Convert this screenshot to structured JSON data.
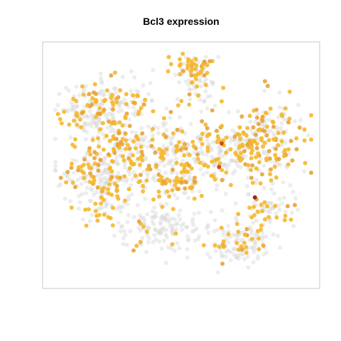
{
  "chart_data": {
    "type": "scatter",
    "title": "Bcl3 expression",
    "xlabel": "",
    "ylabel": "",
    "axes_visible": false,
    "grid": false,
    "legend": "none",
    "colors": {
      "frame": "#c8c8c8",
      "background_cells": "#d6d6d6",
      "low": "#f5b82e",
      "mid": "#e8a33a",
      "high": "#c9501c",
      "max": "#9c2a10"
    },
    "clusters": [
      {
        "cx": 0.42,
        "cy": 0.76,
        "sx": 0.1,
        "sy": 0.05,
        "n": 150,
        "expr_frac": 0.1
      },
      {
        "cx": 0.18,
        "cy": 0.66,
        "sx": 0.05,
        "sy": 0.05,
        "n": 60,
        "expr_frac": 0.35
      },
      {
        "cx": 0.16,
        "cy": 0.54,
        "sx": 0.07,
        "sy": 0.06,
        "n": 140,
        "expr_frac": 0.3
      },
      {
        "cx": 0.45,
        "cy": 0.57,
        "sx": 0.08,
        "sy": 0.03,
        "n": 80,
        "expr_frac": 0.55
      },
      {
        "cx": 0.72,
        "cy": 0.82,
        "sx": 0.06,
        "sy": 0.05,
        "n": 120,
        "expr_frac": 0.3
      },
      {
        "cx": 0.84,
        "cy": 0.68,
        "sx": 0.05,
        "sy": 0.04,
        "n": 60,
        "expr_frac": 0.3
      },
      {
        "cx": 0.4,
        "cy": 0.43,
        "sx": 0.15,
        "sy": 0.07,
        "n": 320,
        "expr_frac": 0.45
      },
      {
        "cx": 0.75,
        "cy": 0.43,
        "sx": 0.12,
        "sy": 0.07,
        "n": 260,
        "expr_frac": 0.5
      },
      {
        "cx": 0.22,
        "cy": 0.25,
        "sx": 0.09,
        "sy": 0.06,
        "n": 180,
        "expr_frac": 0.4
      },
      {
        "cx": 0.85,
        "cy": 0.3,
        "sx": 0.04,
        "sy": 0.06,
        "n": 60,
        "expr_frac": 0.55
      },
      {
        "cx": 0.55,
        "cy": 0.18,
        "sx": 0.04,
        "sy": 0.04,
        "n": 40,
        "expr_frac": 0.25
      },
      {
        "cx": 0.53,
        "cy": 0.07,
        "sx": 0.04,
        "sy": 0.03,
        "n": 70,
        "expr_frac": 0.65
      },
      {
        "cx": 0.1,
        "cy": 0.28,
        "sx": 0.05,
        "sy": 0.06,
        "n": 60,
        "expr_frac": 0.2
      }
    ],
    "highlight_points": [
      {
        "x": 0.78,
        "y": 0.63,
        "level": "max"
      },
      {
        "x": 0.64,
        "y": 0.5,
        "level": "high"
      },
      {
        "x": 0.65,
        "y": 0.4,
        "level": "high"
      }
    ]
  }
}
